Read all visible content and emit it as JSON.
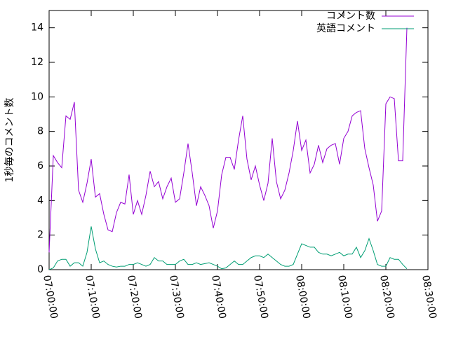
{
  "chart_data": {
    "type": "line",
    "ylabel": "1秒毎のコメント数",
    "x": [
      "07:00:00",
      "07:01:00",
      "07:02:00",
      "07:03:00",
      "07:04:00",
      "07:05:00",
      "07:06:00",
      "07:07:00",
      "07:08:00",
      "07:09:00",
      "07:10:00",
      "07:11:00",
      "07:12:00",
      "07:13:00",
      "07:14:00",
      "07:15:00",
      "07:16:00",
      "07:17:00",
      "07:18:00",
      "07:19:00",
      "07:20:00",
      "07:21:00",
      "07:22:00",
      "07:23:00",
      "07:24:00",
      "07:25:00",
      "07:26:00",
      "07:27:00",
      "07:28:00",
      "07:29:00",
      "07:30:00",
      "07:31:00",
      "07:32:00",
      "07:33:00",
      "07:34:00",
      "07:35:00",
      "07:36:00",
      "07:37:00",
      "07:38:00",
      "07:39:00",
      "07:40:00",
      "07:41:00",
      "07:42:00",
      "07:43:00",
      "07:44:00",
      "07:45:00",
      "07:46:00",
      "07:47:00",
      "07:48:00",
      "07:49:00",
      "07:50:00",
      "07:51:00",
      "07:52:00",
      "07:53:00",
      "07:54:00",
      "07:55:00",
      "07:56:00",
      "07:57:00",
      "07:58:00",
      "07:59:00",
      "08:00:00",
      "08:01:00",
      "08:02:00",
      "08:03:00",
      "08:04:00",
      "08:05:00",
      "08:06:00",
      "08:07:00",
      "08:08:00",
      "08:09:00",
      "08:10:00",
      "08:11:00",
      "08:12:00",
      "08:13:00",
      "08:14:00",
      "08:15:00",
      "08:16:00",
      "08:17:00",
      "08:18:00",
      "08:19:00",
      "08:20:00",
      "08:21:00",
      "08:22:00",
      "08:23:00",
      "08:24:00",
      "08:25:00"
    ],
    "series": [
      {
        "name": "コメント数",
        "color": "#9400d3",
        "values": [
          1.0,
          6.6,
          6.2,
          5.9,
          8.9,
          8.7,
          9.7,
          4.6,
          3.9,
          5.0,
          6.4,
          4.2,
          4.4,
          3.2,
          2.3,
          2.2,
          3.3,
          3.9,
          3.8,
          5.5,
          3.2,
          4.0,
          3.2,
          4.3,
          5.7,
          4.8,
          5.1,
          4.1,
          4.8,
          5.3,
          3.9,
          4.1,
          5.6,
          7.3,
          5.6,
          3.7,
          4.8,
          4.3,
          3.7,
          2.4,
          3.4,
          5.5,
          6.5,
          6.5,
          5.8,
          7.5,
          8.9,
          6.4,
          5.2,
          6.0,
          4.9,
          4.0,
          5.0,
          7.6,
          5.1,
          4.1,
          4.6,
          5.6,
          6.9,
          8.6,
          6.9,
          7.5,
          5.6,
          6.1,
          7.2,
          6.2,
          7.0,
          7.2,
          7.3,
          6.1,
          7.6,
          8.0,
          8.9,
          9.1,
          9.2,
          7.0,
          5.9,
          4.9,
          2.8,
          3.4,
          9.6,
          10.0,
          9.9,
          6.3,
          6.3,
          14.0
        ]
      },
      {
        "name": "英語コメント",
        "color": "#009e73",
        "values": [
          0,
          0.1,
          0.5,
          0.6,
          0.6,
          0.2,
          0.4,
          0.4,
          0.2,
          1.0,
          2.5,
          1.2,
          0.4,
          0.5,
          0.3,
          0.2,
          0.15,
          0.2,
          0.2,
          0.3,
          0.3,
          0.4,
          0.3,
          0.2,
          0.3,
          0.7,
          0.5,
          0.5,
          0.3,
          0.3,
          0.3,
          0.5,
          0.6,
          0.3,
          0.3,
          0.4,
          0.3,
          0.35,
          0.4,
          0.3,
          0.2,
          0.05,
          0.1,
          0.3,
          0.5,
          0.3,
          0.3,
          0.5,
          0.7,
          0.8,
          0.8,
          0.7,
          0.9,
          0.7,
          0.5,
          0.3,
          0.2,
          0.2,
          0.3,
          0.9,
          1.5,
          1.4,
          1.3,
          1.3,
          1.0,
          0.9,
          0.9,
          0.8,
          0.9,
          1.0,
          0.8,
          0.9,
          0.9,
          1.3,
          0.7,
          1.1,
          1.8,
          1.1,
          0.3,
          0.2,
          0.2,
          0.7,
          0.6,
          0.6,
          0.3,
          0.05
        ]
      }
    ],
    "xlim": [
      "07:00:00",
      "08:30:00"
    ],
    "xticks": [
      "07:00:00",
      "07:10:00",
      "07:20:00",
      "07:30:00",
      "07:40:00",
      "07:50:00",
      "08:00:00",
      "08:10:00",
      "08:20:00",
      "08:30:00"
    ],
    "ylim": [
      0,
      15
    ],
    "yticks": [
      0,
      2,
      4,
      6,
      8,
      10,
      12,
      14
    ],
    "legend": "upper right"
  }
}
